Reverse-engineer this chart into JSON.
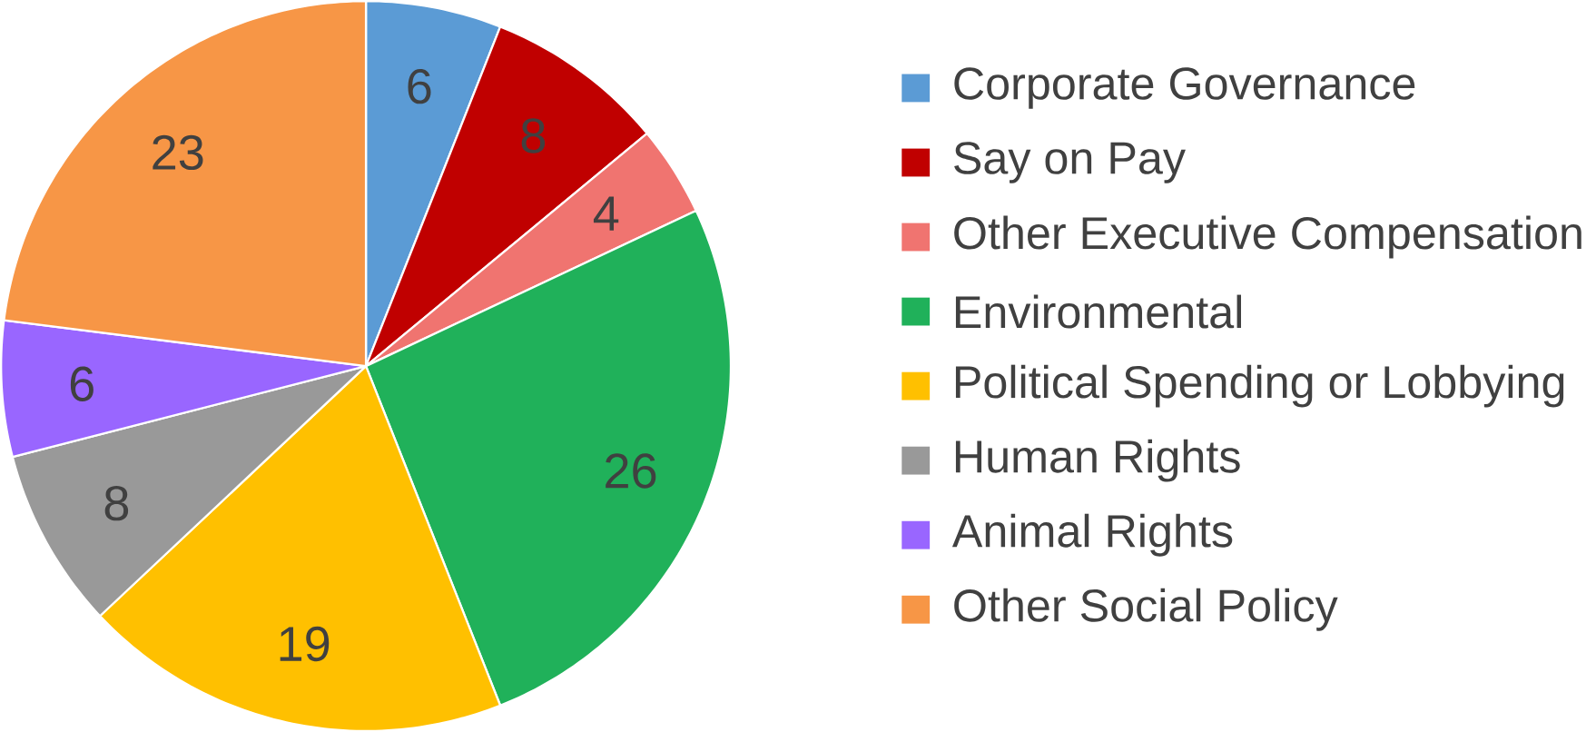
{
  "chart_data": {
    "type": "pie",
    "categories": [
      "Corporate Governance",
      "Say on Pay",
      "Other Executive Compensation",
      "Environmental",
      "Political Spending or Lobbying",
      "Human Rights",
      "Animal Rights",
      "Other Social Policy"
    ],
    "values": [
      6,
      8,
      4,
      26,
      19,
      8,
      6,
      23
    ],
    "colors": [
      "#5b9bd5",
      "#c00000",
      "#f07470",
      "#20b15a",
      "#ffc000",
      "#999999",
      "#9966ff",
      "#f79646"
    ],
    "data_labels": true,
    "legend": "right"
  }
}
